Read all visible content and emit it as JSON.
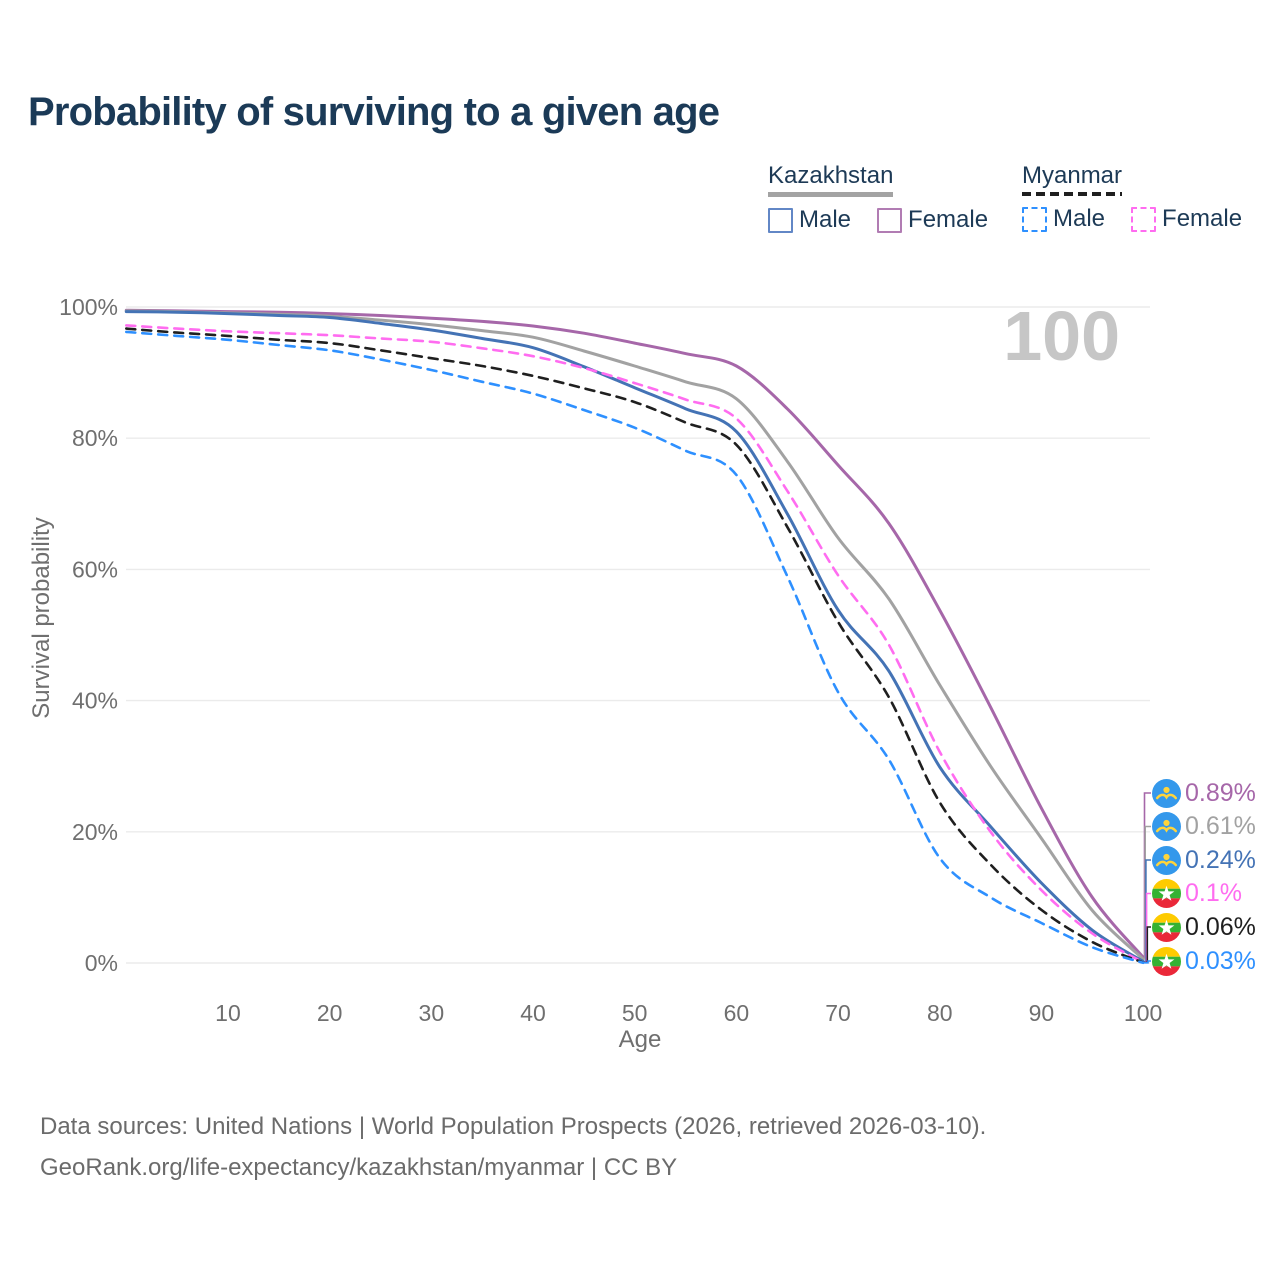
{
  "chart_data": {
    "type": "line",
    "title": "Probability of surviving to a given age",
    "xlabel": "Age",
    "ylabel": "Survival probability",
    "xlim": [
      0,
      100
    ],
    "ylim": [
      0,
      100
    ],
    "grid": "horizontal-only",
    "age_indicator": "100",
    "x_ticks": [
      10,
      20,
      30,
      40,
      50,
      60,
      70,
      80,
      90,
      100
    ],
    "y_ticks": [
      {
        "label": "100%",
        "value": 100
      },
      {
        "label": "80%",
        "value": 80
      },
      {
        "label": "60%",
        "value": 60
      },
      {
        "label": "40%",
        "value": 40
      },
      {
        "label": "20%",
        "value": 20
      },
      {
        "label": "0%",
        "value": 0
      }
    ],
    "x": [
      0,
      5,
      10,
      15,
      20,
      25,
      30,
      35,
      40,
      45,
      50,
      55,
      60,
      65,
      70,
      75,
      80,
      85,
      90,
      95,
      100
    ],
    "series": [
      {
        "name": "Kazakhstan Female",
        "country": "Kazakhstan",
        "sex": "Female",
        "style": "solid",
        "color": "#a667a9",
        "flag": "kz",
        "end_label": "0.89%",
        "values": [
          99.5,
          99.4,
          99.3,
          99.2,
          99.0,
          98.7,
          98.3,
          97.8,
          97.1,
          96.0,
          94.5,
          92.9,
          91.0,
          84.5,
          75.9,
          67.0,
          53.8,
          39.0,
          23.6,
          10.0,
          0.89
        ]
      },
      {
        "name": "Kazakhstan (both sexes)",
        "country": "Kazakhstan",
        "sex": "Both",
        "style": "solid",
        "color": "#a2a2a2",
        "flag": "kz",
        "end_label": "0.61%",
        "values": [
          99.4,
          99.3,
          99.1,
          98.9,
          98.6,
          98.0,
          97.3,
          96.4,
          95.4,
          93.3,
          91.0,
          88.6,
          86.0,
          76.5,
          64.8,
          55.5,
          42.4,
          30.0,
          19.0,
          8.0,
          0.61
        ]
      },
      {
        "name": "Kazakhstan Male",
        "country": "Kazakhstan",
        "sex": "Male",
        "style": "solid",
        "color": "#4473b5",
        "flag": "kz",
        "end_label": "0.24%",
        "values": [
          99.3,
          99.2,
          99.0,
          98.7,
          98.4,
          97.5,
          96.5,
          95.2,
          93.8,
          90.9,
          87.7,
          84.5,
          81.0,
          68.5,
          53.8,
          44.5,
          29.9,
          20.8,
          12.2,
          5.0,
          0.24
        ]
      },
      {
        "name": "Myanmar Female",
        "country": "Myanmar",
        "sex": "Female",
        "style": "dashed",
        "color": "#ff6cf0",
        "flag": "mm",
        "end_label": "0.1%",
        "values": [
          97.2,
          96.7,
          96.3,
          96.0,
          95.7,
          95.2,
          94.7,
          93.7,
          92.5,
          90.7,
          88.4,
          85.9,
          83.0,
          72.0,
          59.1,
          48.5,
          32.2,
          20.0,
          11.1,
          4.5,
          0.1
        ]
      },
      {
        "name": "Myanmar (both sexes)",
        "country": "Myanmar",
        "sex": "Both",
        "style": "dashed",
        "color": "#1f1f1f",
        "flag": "mm",
        "end_label": "0.06%",
        "values": [
          96.7,
          96.1,
          95.6,
          95.0,
          94.5,
          93.4,
          92.2,
          91.0,
          89.5,
          87.6,
          85.5,
          82.4,
          79.0,
          66.5,
          52.0,
          40.5,
          24.5,
          15.0,
          8.1,
          3.2,
          0.06
        ]
      },
      {
        "name": "Myanmar Male",
        "country": "Myanmar",
        "sex": "Male",
        "style": "dashed",
        "color": "#2e90ff",
        "flag": "mm",
        "end_label": "0.03%",
        "values": [
          96.2,
          95.6,
          95.0,
          94.2,
          93.4,
          92.0,
          90.4,
          88.6,
          86.8,
          84.3,
          81.6,
          78.1,
          74.4,
          59.0,
          41.3,
          31.0,
          16.0,
          10.0,
          6.1,
          2.4,
          0.03
        ]
      }
    ]
  },
  "legend": {
    "groups": [
      {
        "name": "Kazakhstan",
        "underline_style": "solid",
        "underline_color": "#a3a3a3",
        "items": [
          {
            "label": "Male",
            "swatch_color": "#6287c6",
            "swatch_style": "solid"
          },
          {
            "label": "Female",
            "swatch_color": "#b17cb3",
            "swatch_style": "solid"
          }
        ]
      },
      {
        "name": "Myanmar",
        "underline_style": "dashed",
        "underline_color": "#1f1f1f",
        "items": [
          {
            "label": "Male",
            "swatch_color": "#2e90ff",
            "swatch_style": "dashed"
          },
          {
            "label": "Female",
            "swatch_color": "#ff6cf0",
            "swatch_style": "dashed"
          }
        ]
      }
    ]
  },
  "footer": {
    "line1": "Data sources: United Nations | World Population Prospects (2026, retrieved 2026-03-10).",
    "line2": "GeoRank.org/life-expectancy/kazakhstan/myanmar | CC BY"
  }
}
